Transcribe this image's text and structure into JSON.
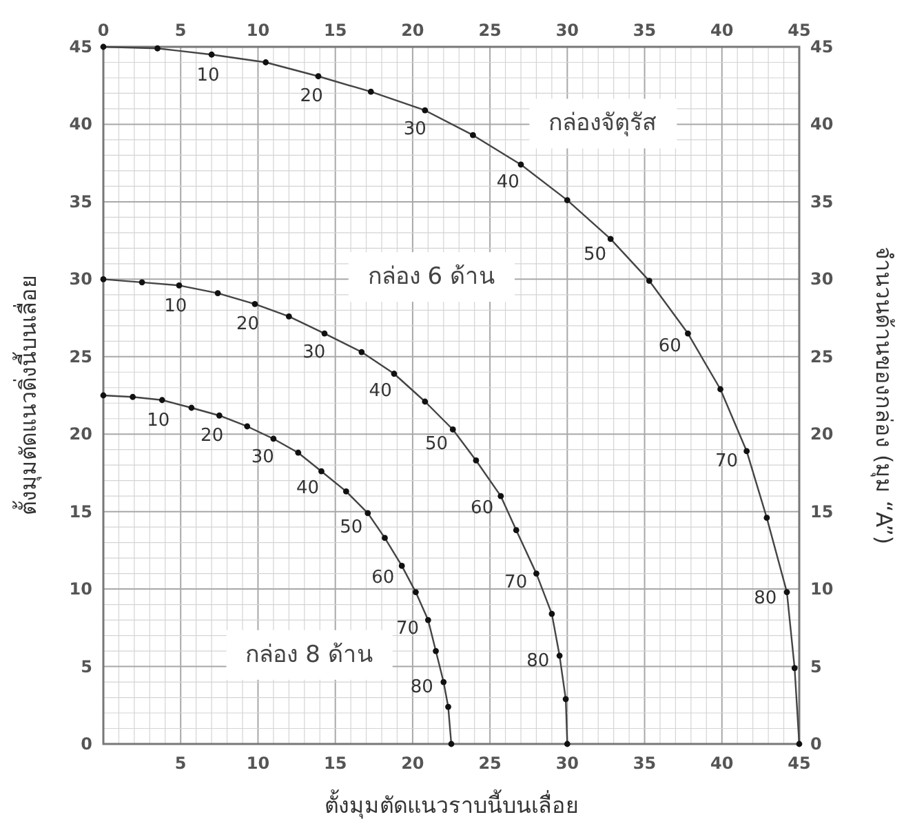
{
  "chart_data": {
    "type": "line",
    "xlabel": "ตั้งมุมตัดแนวราบนี้บนเลื่อย",
    "ylabel": "ตั้งมุมตัดแนวดิ่งนี้บนเลื่อย",
    "y2label": "จำนวนด้านของกล่อง (มุม “A”)",
    "xlim": [
      0,
      45
    ],
    "ylim": [
      0,
      45
    ],
    "y2lim": [
      0,
      45
    ],
    "x2lim": [
      0,
      45
    ],
    "xticks": [
      {
        "value": 0,
        "label": null
      },
      5,
      10,
      15,
      20,
      25,
      30,
      35,
      40,
      45
    ],
    "x2ticks": [
      0,
      5,
      10,
      15,
      20,
      25,
      30,
      35,
      40,
      45
    ],
    "yticks": [
      0,
      5,
      10,
      15,
      20,
      25,
      30,
      35,
      40,
      45
    ],
    "y2ticks": [
      0,
      5,
      10,
      15,
      20,
      25,
      30,
      35,
      40,
      45
    ],
    "grid": true,
    "marker": "circle",
    "line_style": "solid",
    "series": [
      {
        "name": "กล่องจัตุรัส",
        "color": "#444444",
        "x": [
          0,
          3.5,
          7,
          10.5,
          13.9,
          17.3,
          20.8,
          23.9,
          27,
          30,
          32.8,
          35.3,
          37.8,
          39.9,
          41.6,
          42.9,
          44.2,
          44.7,
          45
        ],
        "values": [
          45,
          44.9,
          44.5,
          44,
          43.1,
          42.1,
          40.9,
          39.3,
          37.4,
          35.1,
          32.6,
          29.9,
          26.5,
          22.9,
          18.9,
          14.6,
          9.8,
          4.9,
          0
        ]
      },
      {
        "name": "กล่อง 6 ด้าน",
        "color": "#444444",
        "x": [
          0,
          2.5,
          4.9,
          7.4,
          9.8,
          12,
          14.3,
          16.7,
          18.8,
          20.8,
          22.6,
          24.1,
          25.7,
          26.7,
          28,
          29,
          29.5,
          29.9,
          30
        ],
        "values": [
          30,
          29.8,
          29.6,
          29.1,
          28.4,
          27.6,
          26.5,
          25.3,
          23.9,
          22.1,
          20.3,
          18.3,
          16,
          13.8,
          11,
          8.4,
          5.7,
          2.9,
          0
        ]
      },
      {
        "name": "กล่อง 8 ด้าน",
        "color": "#444444",
        "x": [
          0,
          1.9,
          3.8,
          5.7,
          7.5,
          9.3,
          11,
          12.6,
          14.1,
          15.7,
          17.1,
          18.2,
          19.3,
          20.2,
          21,
          21.5,
          22,
          22.3,
          22.5
        ],
        "values": [
          22.5,
          22.4,
          22.2,
          21.7,
          21.2,
          20.5,
          19.7,
          18.8,
          17.6,
          16.3,
          14.9,
          13.3,
          11.5,
          9.8,
          8,
          6,
          4,
          2.4,
          0
        ]
      }
    ],
    "annotations": [
      {
        "text": "10",
        "x": 7,
        "y": 44.5
      },
      {
        "text": "20",
        "x": 13.9,
        "y": 43.1
      },
      {
        "text": "30",
        "x": 20.8,
        "y": 40.9
      },
      {
        "text": "40",
        "x": 27,
        "y": 37.4
      },
      {
        "text": "50",
        "x": 32.8,
        "y": 32.6
      },
      {
        "text": "60",
        "x": 37.8,
        "y": 26.5
      },
      {
        "text": "70",
        "x": 41.6,
        "y": 18.9
      },
      {
        "text": "80",
        "x": 44.2,
        "y": 9.8
      },
      {
        "text": "10",
        "x": 4.9,
        "y": 29.6
      },
      {
        "text": "20",
        "x": 9.8,
        "y": 28.4
      },
      {
        "text": "30",
        "x": 14.3,
        "y": 26.5
      },
      {
        "text": "40",
        "x": 18.8,
        "y": 23.9
      },
      {
        "text": "50",
        "x": 22.6,
        "y": 20.3
      },
      {
        "text": "60",
        "x": 25.7,
        "y": 16
      },
      {
        "text": "70",
        "x": 28,
        "y": 11
      },
      {
        "text": "80",
        "x": 29.5,
        "y": 5.7
      },
      {
        "text": "10",
        "x": 3.8,
        "y": 22.2
      },
      {
        "text": "20",
        "x": 7.5,
        "y": 21.2
      },
      {
        "text": "30",
        "x": 11,
        "y": 19.7
      },
      {
        "text": "40",
        "x": 14.1,
        "y": 17.6
      },
      {
        "text": "50",
        "x": 17.1,
        "y": 14.9
      },
      {
        "text": "60",
        "x": 19.3,
        "y": 11.5
      },
      {
        "text": "70",
        "x": 21,
        "y": 8
      },
      {
        "text": "80",
        "x": 22,
        "y": 4
      }
    ]
  }
}
